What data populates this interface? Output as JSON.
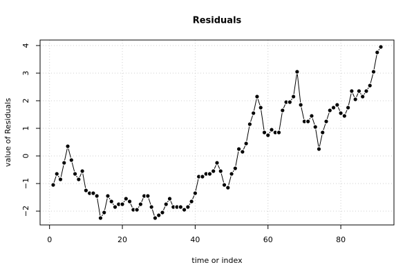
{
  "chart_data": {
    "type": "line",
    "title": "Residuals",
    "x_label": "time or index",
    "y_label": "value of Residuals",
    "x": [
      1,
      2,
      3,
      4,
      5,
      6,
      7,
      8,
      9,
      10,
      11,
      12,
      13,
      14,
      15,
      16,
      17,
      18,
      19,
      20,
      21,
      22,
      23,
      24,
      25,
      26,
      27,
      28,
      29,
      30,
      31,
      32,
      33,
      34,
      35,
      36,
      37,
      38,
      39,
      40,
      41,
      42,
      43,
      44,
      45,
      46,
      47,
      48,
      49,
      50,
      51,
      52,
      53,
      54,
      55,
      56,
      57,
      58,
      59,
      60,
      61,
      62,
      63,
      64,
      65,
      66,
      67,
      68,
      69,
      70,
      71,
      72,
      73,
      74,
      75,
      76,
      77,
      78,
      79,
      80,
      81,
      82,
      83,
      84,
      85,
      86,
      87,
      88,
      89,
      90,
      91
    ],
    "series": [
      {
        "color": "#000000",
        "values": [
          -1.05,
          -0.65,
          -0.85,
          -0.25,
          0.35,
          -0.15,
          -0.65,
          -0.85,
          -0.55,
          -1.25,
          -1.35,
          -1.35,
          -1.45,
          -2.25,
          -2.05,
          -1.45,
          -1.65,
          -1.85,
          -1.75,
          -1.75,
          -1.55,
          -1.65,
          -1.95,
          -1.95,
          -1.75,
          -1.45,
          -1.45,
          -1.85,
          -2.25,
          -2.15,
          -2.05,
          -1.75,
          -1.55,
          -1.85,
          -1.85,
          -1.85,
          -1.95,
          -1.85,
          -1.65,
          -1.35,
          -0.75,
          -0.75,
          -0.65,
          -0.65,
          -0.55,
          -0.25,
          -0.55,
          -1.05,
          -1.15,
          -0.65,
          -0.45,
          0.25,
          0.15,
          0.45,
          1.15,
          1.55,
          2.15,
          1.75,
          0.85,
          0.75,
          0.95,
          0.85,
          0.85,
          1.65,
          1.95,
          1.95,
          2.15,
          3.05,
          1.85,
          1.25,
          1.25,
          1.45,
          1.05,
          0.25,
          0.85,
          1.25,
          1.65,
          1.75,
          1.85,
          1.55,
          1.45,
          1.75,
          2.35,
          2.05,
          2.35,
          2.15,
          2.35,
          2.55,
          3.05,
          3.75,
          3.95
        ]
      }
    ],
    "xlim": [
      -2.6,
      94.6
    ],
    "xticks": [
      0,
      20,
      40,
      60,
      80
    ],
    "ylim": [
      -2.5,
      4.2
    ],
    "yticks": [
      {
        "value": -2,
        "label": "−2"
      },
      {
        "value": -1,
        "label": "−1"
      },
      0,
      1,
      2,
      3,
      4
    ],
    "grid": true
  }
}
